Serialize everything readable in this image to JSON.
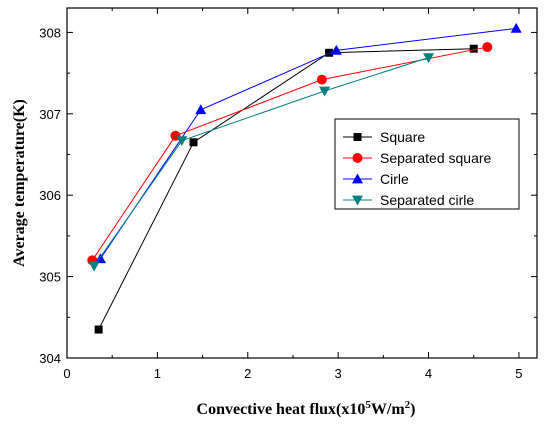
{
  "chart_data": {
    "type": "line",
    "title": "",
    "xlabel": {
      "prefix": "Convective heat flux(x10",
      "sup1": "5",
      "middle": "W/m",
      "sup2": "2",
      "suffix": ")"
    },
    "ylabel": "Average temperature(K)",
    "xlim": [
      0,
      5.2
    ],
    "ylim": [
      304,
      308.3
    ],
    "xticks": [
      "0",
      "1",
      "2",
      "3",
      "4",
      "5"
    ],
    "yticks": [
      "304",
      "305",
      "306",
      "307",
      "308"
    ],
    "grid": false,
    "legend_position": "center-right",
    "series": [
      {
        "name": "Square",
        "color": "#000000",
        "marker": "square",
        "x": [
          0.35,
          1.4,
          2.9,
          4.5
        ],
        "y": [
          304.35,
          306.65,
          307.75,
          307.8
        ]
      },
      {
        "name": "Separated square",
        "color": "#ff0000",
        "marker": "circle",
        "x": [
          0.28,
          1.2,
          2.82,
          4.65
        ],
        "y": [
          305.2,
          306.73,
          307.42,
          307.82
        ]
      },
      {
        "name": "Cirle",
        "color": "#0000ff",
        "marker": "triangle-up",
        "x": [
          0.37,
          1.48,
          2.98,
          4.97
        ],
        "y": [
          305.22,
          307.05,
          307.78,
          308.05
        ]
      },
      {
        "name": "Separated cirle",
        "color": "#008080",
        "marker": "triangle-down",
        "x": [
          0.3,
          1.27,
          2.85,
          4.0
        ],
        "y": [
          305.13,
          306.67,
          307.28,
          307.69
        ]
      }
    ]
  }
}
